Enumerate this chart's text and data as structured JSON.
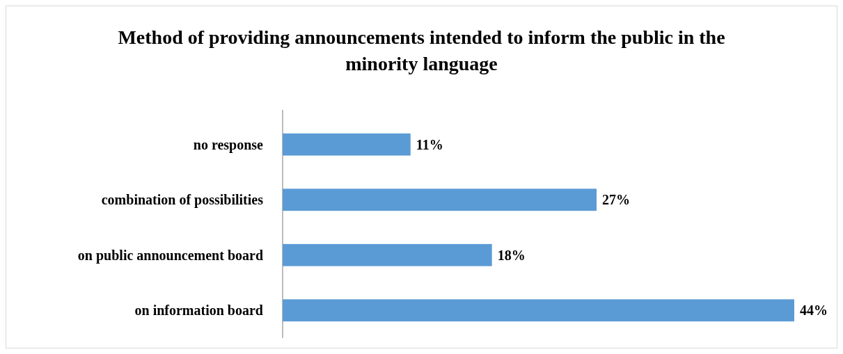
{
  "chart_data": {
    "type": "bar",
    "orientation": "horizontal",
    "title": "Method of providing announcements intended to inform the public in the minority language",
    "categories": [
      "no response",
      "combination of possibilities",
      "on public announcement board",
      "on information board"
    ],
    "values": [
      11,
      27,
      18,
      44
    ],
    "color": "#5b9bd5",
    "data_labels": true,
    "value_labels": [
      "11%",
      "27%",
      "18%",
      "44%"
    ]
  }
}
